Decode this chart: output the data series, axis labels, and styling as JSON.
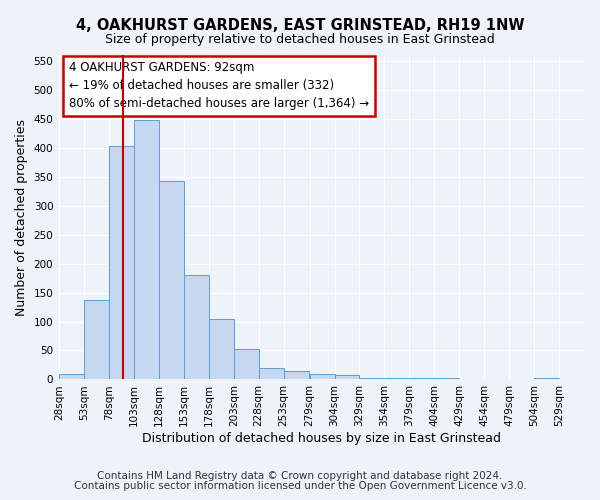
{
  "title": "4, OAKHURST GARDENS, EAST GRINSTEAD, RH19 1NW",
  "subtitle": "Size of property relative to detached houses in East Grinstead",
  "xlabel": "Distribution of detached houses by size in East Grinstead",
  "ylabel": "Number of detached properties",
  "bin_edges": [
    28,
    53,
    78,
    103,
    128,
    153,
    178,
    203,
    228,
    253,
    279,
    304,
    329,
    354,
    379,
    404,
    429,
    454,
    479,
    504,
    529
  ],
  "bin_heights": [
    10,
    137,
    403,
    447,
    343,
    180,
    104,
    52,
    20,
    14,
    10,
    8,
    3,
    2,
    2,
    2,
    1,
    0,
    0,
    2
  ],
  "bar_color": "#c5d8f0",
  "bar_edge_color": "#5a9fd4",
  "vline_x": 92,
  "vline_color": "#cc0000",
  "annotation_line1": "4 OAKHURST GARDENS: 92sqm",
  "annotation_line2": "← 19% of detached houses are smaller (332)",
  "annotation_line3": "80% of semi-detached houses are larger (1,364) →",
  "annotation_box_color": "#ffffff",
  "annotation_box_edge": "#cc0000",
  "ylim": [
    0,
    560
  ],
  "yticks": [
    0,
    50,
    100,
    150,
    200,
    250,
    300,
    350,
    400,
    450,
    500,
    550
  ],
  "tick_labels": [
    "28sqm",
    "53sqm",
    "78sqm",
    "103sqm",
    "128sqm",
    "153sqm",
    "178sqm",
    "203sqm",
    "228sqm",
    "253sqm",
    "279sqm",
    "304sqm",
    "329sqm",
    "354sqm",
    "379sqm",
    "404sqm",
    "429sqm",
    "454sqm",
    "479sqm",
    "504sqm",
    "529sqm"
  ],
  "footer1": "Contains HM Land Registry data © Crown copyright and database right 2024.",
  "footer2": "Contains public sector information licensed under the Open Government Licence v3.0.",
  "background_color": "#eef2f9",
  "grid_color": "#ffffff",
  "title_fontsize": 10.5,
  "subtitle_fontsize": 9,
  "axis_label_fontsize": 9,
  "tick_fontsize": 7.5,
  "annotation_fontsize": 8.5,
  "footer_fontsize": 7.5
}
